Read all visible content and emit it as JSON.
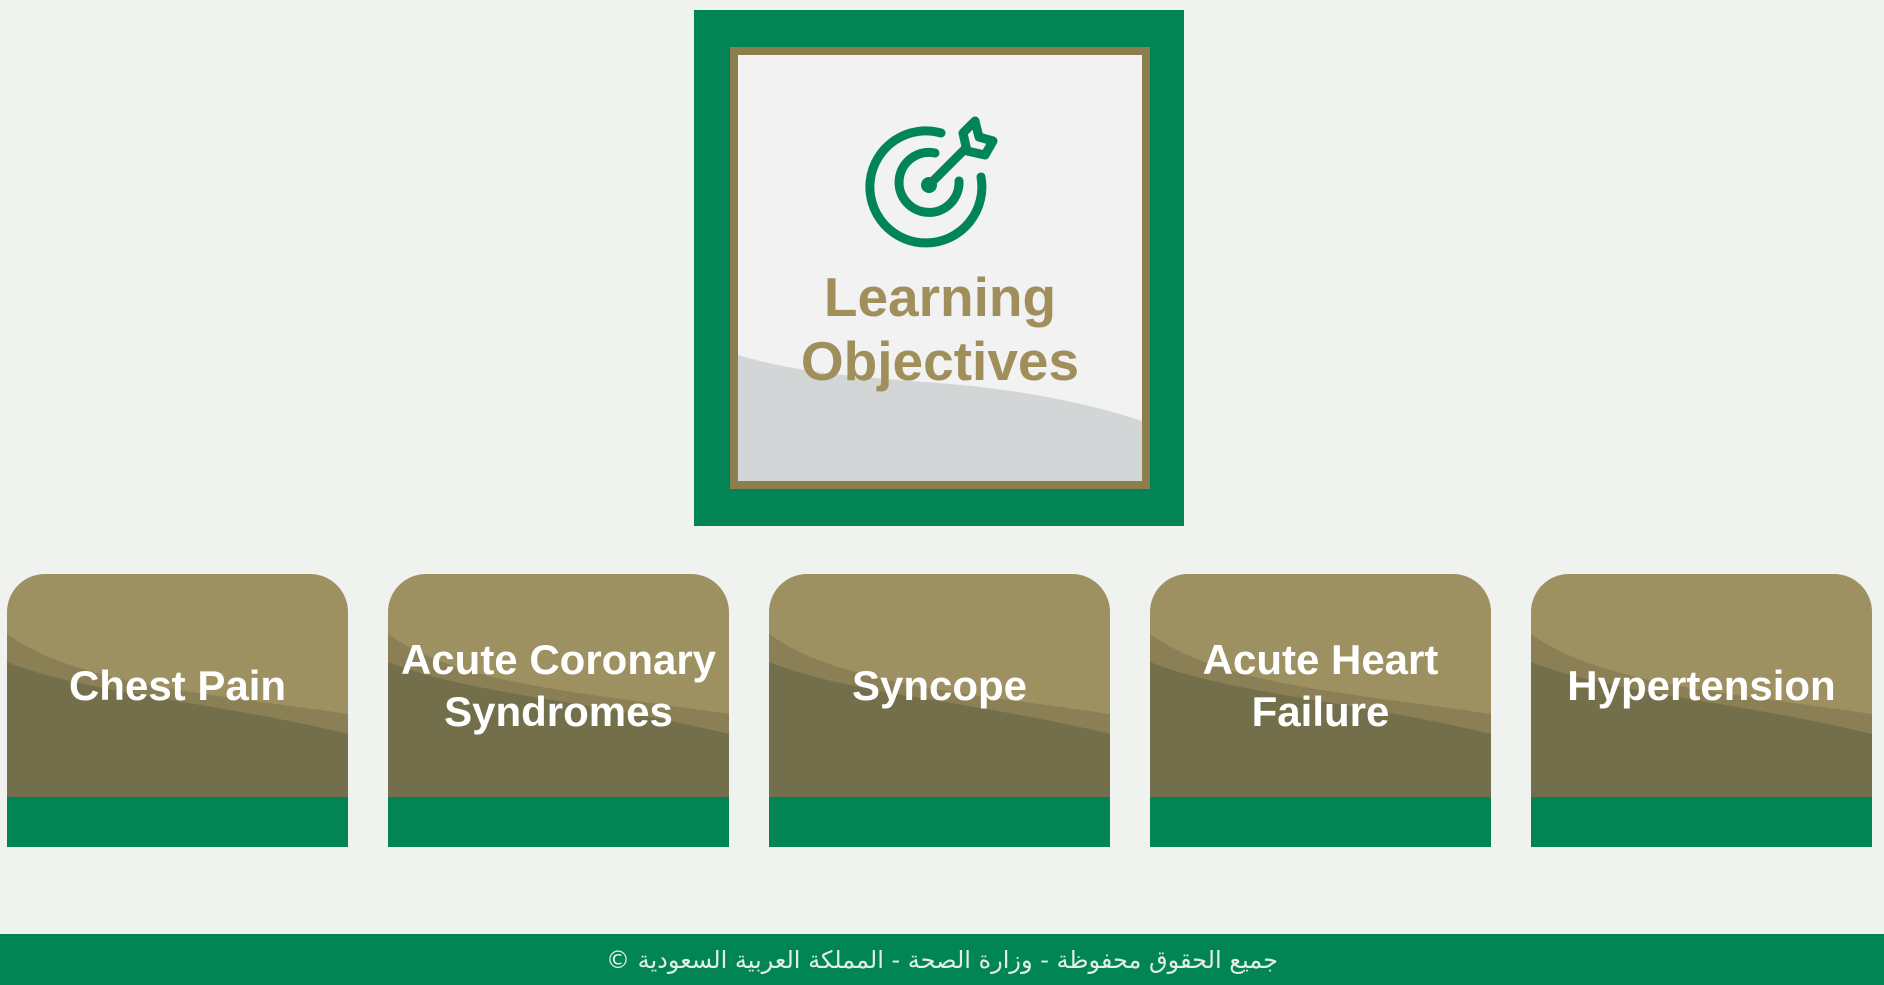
{
  "title": {
    "line1": "Learning",
    "line2": "Objectives",
    "icon": "target-arrow-icon"
  },
  "cards": [
    {
      "label": "Chest Pain"
    },
    {
      "label": "Acute Coronary Syndromes"
    },
    {
      "label": "Syncope"
    },
    {
      "label": "Acute Heart Failure"
    },
    {
      "label": "Hypertension"
    }
  ],
  "footer": {
    "text": "جميع الحقوق محفوظة - وزارة الصحة - المملكة العربية السعودية ©"
  },
  "colors": {
    "green": "#028556",
    "gold": "#9d9061",
    "gold_dark": "#746f4b",
    "title_text": "#a08f5a",
    "background": "#f0f2f0"
  }
}
